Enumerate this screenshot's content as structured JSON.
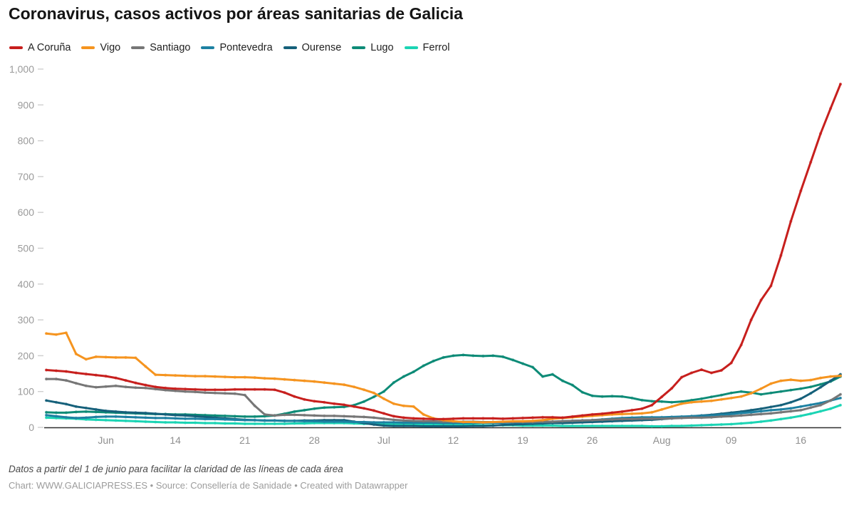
{
  "header": {
    "title": "Coronavirus, casos activos por áreas sanitarias de Galicia"
  },
  "footer": {
    "note": "Datos a partir del 1 de junio para facilitar la claridad de las líneas de cada área",
    "credit": "Chart: WWW.GALICIAPRESS.ES • Source: Consellería de Sanidade • Created with Datawrapper"
  },
  "colors": {
    "axis_line": "#2f2f2f",
    "tick_dash": "#cfcfcf",
    "y_label": "#9a9a9a",
    "x_label": "#8f8f8f"
  },
  "chart_data": {
    "type": "line",
    "title": "Coronavirus, casos activos por áreas sanitarias de Galicia",
    "xlabel": "",
    "ylabel": "",
    "x_start": "Jun 1",
    "x_end": "Aug 20",
    "n_points": 81,
    "ylim": [
      0,
      1000
    ],
    "grid": "none",
    "legend_position": "top",
    "y_ticks": [
      {
        "value": 0,
        "label": "0"
      },
      {
        "value": 100,
        "label": "100"
      },
      {
        "value": 200,
        "label": "200"
      },
      {
        "value": 300,
        "label": "300"
      },
      {
        "value": 400,
        "label": "400"
      },
      {
        "value": 500,
        "label": "500"
      },
      {
        "value": 600,
        "label": "600"
      },
      {
        "value": 700,
        "label": "700"
      },
      {
        "value": 800,
        "label": "800"
      },
      {
        "value": 900,
        "label": "900"
      },
      {
        "value": 1000,
        "label": "1,000"
      }
    ],
    "x_ticks": [
      {
        "day": 6,
        "label": "Jun"
      },
      {
        "day": 13,
        "label": "14"
      },
      {
        "day": 20,
        "label": "21"
      },
      {
        "day": 27,
        "label": "28"
      },
      {
        "day": 34,
        "label": "Jul"
      },
      {
        "day": 41,
        "label": "12"
      },
      {
        "day": 48,
        "label": "19"
      },
      {
        "day": 55,
        "label": "26"
      },
      {
        "day": 62,
        "label": "Aug"
      },
      {
        "day": 69,
        "label": "09"
      },
      {
        "day": 76,
        "label": "16"
      }
    ],
    "series": [
      {
        "name": "A Coruña",
        "color": "#c71f1d",
        "values": [
          160,
          158,
          156,
          152,
          149,
          146,
          143,
          138,
          131,
          124,
          118,
          113,
          110,
          108,
          107,
          106,
          105,
          105,
          105,
          106,
          106,
          106,
          106,
          105,
          97,
          86,
          78,
          73,
          70,
          66,
          63,
          58,
          53,
          47,
          39,
          31,
          27,
          25,
          24,
          23,
          23,
          24,
          25,
          25,
          25,
          25,
          24,
          25,
          26,
          27,
          28,
          28,
          27,
          30,
          33,
          36,
          38,
          41,
          44,
          48,
          52,
          62,
          85,
          109,
          140,
          152,
          161,
          152,
          159,
          180,
          230,
          300,
          355,
          395,
          480,
          575,
          660,
          740,
          820,
          890,
          958
        ]
      },
      {
        "name": "Vigo",
        "color": "#f5941f",
        "values": [
          262,
          259,
          264,
          205,
          190,
          197,
          196,
          195,
          195,
          194,
          170,
          147,
          146,
          145,
          144,
          143,
          143,
          142,
          141,
          140,
          140,
          139,
          137,
          136,
          134,
          132,
          130,
          128,
          125,
          122,
          119,
          113,
          105,
          96,
          80,
          66,
          60,
          58,
          36,
          25,
          20,
          17,
          15,
          15,
          14,
          15,
          16,
          17,
          17,
          18,
          20,
          24,
          26,
          28,
          30,
          32,
          34,
          36,
          37,
          38,
          39,
          42,
          50,
          58,
          66,
          70,
          72,
          74,
          78,
          82,
          86,
          95,
          108,
          122,
          130,
          133,
          130,
          132,
          138,
          142,
          144
        ]
      },
      {
        "name": "Santiago",
        "color": "#767676",
        "values": [
          135,
          135,
          131,
          123,
          116,
          112,
          114,
          116,
          113,
          111,
          110,
          107,
          104,
          102,
          100,
          99,
          97,
          96,
          95,
          94,
          90,
          60,
          36,
          33,
          35,
          35,
          34,
          33,
          32,
          32,
          31,
          30,
          29,
          27,
          24,
          21,
          19,
          18,
          17,
          17,
          16,
          16,
          16,
          16,
          15,
          15,
          15,
          15,
          15,
          15,
          16,
          16,
          17,
          18,
          19,
          20,
          21,
          22,
          23,
          23,
          24,
          24,
          24,
          25,
          26,
          27,
          27,
          28,
          30,
          31,
          33,
          35,
          37,
          39,
          42,
          45,
          48,
          55,
          62,
          75,
          92
        ]
      },
      {
        "name": "Pontevedra",
        "color": "#1d81a2",
        "values": [
          34,
          31,
          28,
          26,
          27,
          29,
          30,
          30,
          29,
          28,
          27,
          26,
          26,
          25,
          24,
          24,
          23,
          23,
          22,
          21,
          20,
          20,
          19,
          19,
          18,
          18,
          17,
          17,
          16,
          16,
          16,
          15,
          15,
          14,
          14,
          14,
          13,
          13,
          13,
          13,
          12,
          12,
          12,
          13,
          13,
          13,
          13,
          14,
          14,
          14,
          15,
          16,
          17,
          18,
          19,
          20,
          22,
          24,
          26,
          27,
          28,
          28,
          28,
          29,
          30,
          31,
          32,
          33,
          35,
          37,
          40,
          42,
          45,
          48,
          50,
          53,
          58,
          63,
          68,
          75,
          82
        ]
      },
      {
        "name": "Ourense",
        "color": "#15607a",
        "values": [
          75,
          70,
          65,
          58,
          54,
          50,
          46,
          44,
          42,
          41,
          40,
          38,
          36,
          34,
          33,
          31,
          29,
          27,
          25,
          23,
          21,
          20,
          19,
          19,
          18,
          18,
          19,
          19,
          20,
          20,
          20,
          16,
          12,
          8,
          5,
          4,
          4,
          4,
          3,
          3,
          3,
          3,
          3,
          4,
          4,
          5,
          7,
          8,
          9,
          10,
          11,
          12,
          12,
          13,
          14,
          15,
          16,
          17,
          18,
          19,
          20,
          21,
          23,
          25,
          28,
          31,
          33,
          35,
          38,
          41,
          44,
          48,
          52,
          57,
          62,
          70,
          80,
          95,
          112,
          130,
          148
        ]
      },
      {
        "name": "Lugo",
        "color": "#0d8b77",
        "values": [
          42,
          41,
          41,
          43,
          44,
          43,
          42,
          41,
          40,
          39,
          38,
          37,
          37,
          36,
          36,
          35,
          34,
          33,
          32,
          31,
          30,
          30,
          31,
          33,
          38,
          44,
          48,
          52,
          55,
          56,
          57,
          62,
          72,
          85,
          100,
          125,
          142,
          155,
          172,
          185,
          195,
          200,
          202,
          200,
          199,
          200,
          197,
          188,
          178,
          168,
          142,
          148,
          130,
          118,
          98,
          88,
          86,
          87,
          86,
          82,
          76,
          73,
          72,
          70,
          72,
          76,
          80,
          85,
          90,
          96,
          100,
          97,
          92,
          96,
          100,
          104,
          108,
          113,
          120,
          128,
          142
        ]
      },
      {
        "name": "Ferrol",
        "color": "#1bd4b4",
        "values": [
          27,
          26,
          25,
          24,
          22,
          21,
          20,
          19,
          18,
          17,
          16,
          15,
          14,
          14,
          13,
          13,
          12,
          12,
          11,
          11,
          10,
          10,
          10,
          10,
          10,
          11,
          11,
          12,
          12,
          12,
          12,
          11,
          10,
          10,
          9,
          9,
          8,
          8,
          8,
          8,
          7,
          7,
          7,
          7,
          6,
          6,
          6,
          6,
          5,
          5,
          5,
          5,
          4,
          4,
          4,
          4,
          4,
          4,
          4,
          4,
          4,
          3,
          3,
          4,
          4,
          5,
          6,
          7,
          8,
          9,
          11,
          13,
          16,
          19,
          23,
          27,
          32,
          38,
          45,
          52,
          62
        ]
      }
    ]
  }
}
